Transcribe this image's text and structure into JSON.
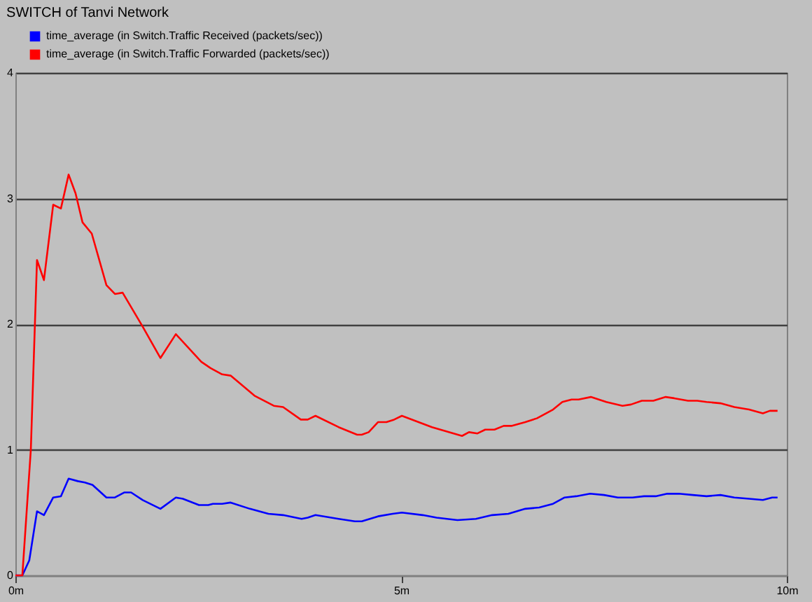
{
  "chart_data": {
    "type": "line",
    "title": "SWITCH of Tanvi Network",
    "series": [
      {
        "name": "time_average (in Switch.Traffic Received (packets/sec))",
        "color": "#0000ff",
        "x": [
          0,
          0.09,
          0.18,
          0.28,
          0.37,
          0.49,
          0.59,
          0.69,
          0.81,
          0.9,
          1.0,
          1.18,
          1.29,
          1.41,
          1.5,
          1.65,
          1.88,
          2.08,
          2.17,
          2.38,
          2.5,
          2.56,
          2.68,
          2.79,
          3.04,
          3.28,
          3.47,
          3.71,
          3.79,
          3.89,
          4.19,
          4.4,
          4.49,
          4.7,
          4.89,
          5.01,
          5.28,
          5.46,
          5.73,
          5.97,
          6.18,
          6.39,
          6.61,
          6.79,
          6.97,
          7.12,
          7.27,
          7.45,
          7.63,
          7.81,
          8.0,
          8.15,
          8.3,
          8.45,
          8.6,
          8.78,
          8.96,
          9.14,
          9.32,
          9.51,
          9.69,
          9.81,
          9.88
        ],
        "values": [
          0,
          0,
          0.12,
          0.51,
          0.48,
          0.62,
          0.63,
          0.77,
          0.75,
          0.74,
          0.72,
          0.62,
          0.62,
          0.66,
          0.66,
          0.6,
          0.53,
          0.62,
          0.61,
          0.56,
          0.56,
          0.57,
          0.57,
          0.58,
          0.53,
          0.49,
          0.48,
          0.45,
          0.46,
          0.48,
          0.45,
          0.43,
          0.43,
          0.47,
          0.49,
          0.5,
          0.48,
          0.46,
          0.44,
          0.45,
          0.48,
          0.49,
          0.53,
          0.54,
          0.57,
          0.62,
          0.63,
          0.65,
          0.64,
          0.62,
          0.62,
          0.63,
          0.63,
          0.65,
          0.65,
          0.64,
          0.63,
          0.64,
          0.62,
          0.61,
          0.6,
          0.62,
          0.62
        ]
      },
      {
        "name": "time_average (in Switch.Traffic Forwarded (packets/sec))",
        "color": "#ff0000",
        "x": [
          0,
          0.09,
          0.2,
          0.28,
          0.37,
          0.49,
          0.59,
          0.69,
          0.78,
          0.87,
          0.99,
          1.18,
          1.29,
          1.39,
          1.65,
          1.88,
          2.08,
          2.41,
          2.53,
          2.68,
          2.79,
          3.1,
          3.35,
          3.47,
          3.7,
          3.79,
          3.89,
          4.19,
          4.43,
          4.49,
          4.58,
          4.7,
          4.81,
          4.91,
          5.01,
          5.4,
          5.79,
          5.88,
          5.99,
          6.09,
          6.21,
          6.33,
          6.43,
          6.61,
          6.76,
          6.97,
          7.09,
          7.21,
          7.3,
          7.46,
          7.66,
          7.87,
          7.98,
          8.12,
          8.27,
          8.43,
          8.54,
          8.72,
          8.84,
          8.96,
          9.14,
          9.32,
          9.51,
          9.69,
          9.78,
          9.88
        ],
        "values": [
          0,
          0,
          1.0,
          2.51,
          2.35,
          2.95,
          2.92,
          3.19,
          3.04,
          2.81,
          2.72,
          2.31,
          2.24,
          2.25,
          1.98,
          1.73,
          1.92,
          1.7,
          1.65,
          1.6,
          1.59,
          1.43,
          1.35,
          1.34,
          1.24,
          1.24,
          1.27,
          1.18,
          1.12,
          1.12,
          1.14,
          1.22,
          1.22,
          1.24,
          1.27,
          1.18,
          1.11,
          1.14,
          1.13,
          1.16,
          1.16,
          1.19,
          1.19,
          1.22,
          1.25,
          1.32,
          1.38,
          1.4,
          1.4,
          1.42,
          1.38,
          1.35,
          1.36,
          1.39,
          1.39,
          1.42,
          1.41,
          1.39,
          1.39,
          1.38,
          1.37,
          1.34,
          1.32,
          1.29,
          1.31,
          1.31
        ]
      }
    ],
    "xlim": [
      0,
      10
    ],
    "xticks": [
      {
        "value": 0,
        "label": "0m"
      },
      {
        "value": 5,
        "label": "5m"
      },
      {
        "value": 10,
        "label": "10m"
      }
    ],
    "ylim": [
      0,
      4
    ],
    "yticks": [
      0,
      1,
      2,
      3,
      4
    ],
    "grid": "y",
    "legend": "top left"
  }
}
